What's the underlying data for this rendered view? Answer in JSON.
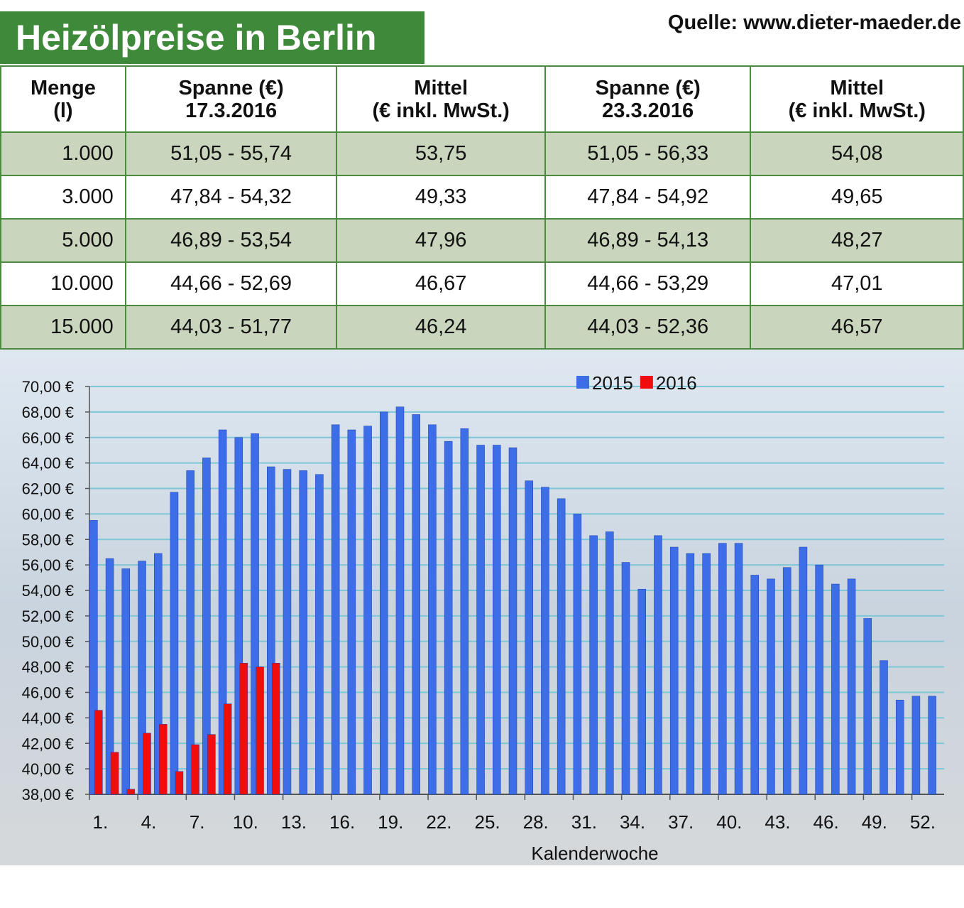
{
  "header": {
    "title": "Heizölpreise in Berlin",
    "source": "Quelle: www.dieter-maeder.de"
  },
  "table": {
    "headers": [
      [
        "Menge",
        "(l)"
      ],
      [
        "Spanne (€)",
        "17.3.2016"
      ],
      [
        "Mittel",
        "(€ inkl. MwSt.)"
      ],
      [
        "Spanne (€)",
        "23.3.2016"
      ],
      [
        "Mittel",
        "(€ inkl. MwSt.)"
      ]
    ],
    "rows": [
      [
        "1.000",
        "51,05 - 55,74",
        "53,75",
        "51,05 - 56,33",
        "54,08"
      ],
      [
        "3.000",
        "47,84 - 54,32",
        "49,33",
        "47,84 - 54,92",
        "49,65"
      ],
      [
        "5.000",
        "46,89 - 53,54",
        "47,96",
        "46,89 - 54,13",
        "48,27"
      ],
      [
        "10.000",
        "44,66 - 52,69",
        "46,67",
        "44,66 - 53,29",
        "47,01"
      ],
      [
        "15.000",
        "44,03 - 51,77",
        "46,24",
        "44,03 - 52,36",
        "46,57"
      ]
    ]
  },
  "chart_data": {
    "type": "bar",
    "x_label": "Kalenderwoche",
    "categories": [
      "1.",
      null,
      null,
      "4.",
      null,
      null,
      "7.",
      null,
      null,
      "10.",
      null,
      null,
      "13.",
      null,
      null,
      "16.",
      null,
      null,
      "19.",
      null,
      null,
      "22.",
      null,
      null,
      "25.",
      null,
      null,
      "28.",
      null,
      null,
      "31.",
      null,
      null,
      "34.",
      null,
      null,
      "37.",
      null,
      null,
      "40.",
      null,
      null,
      "43.",
      null,
      null,
      "46.",
      null,
      null,
      "49.",
      null,
      null,
      "52.",
      null
    ],
    "series": [
      {
        "name": "2015",
        "color": "#3d6ee8",
        "values": [
          59.5,
          56.5,
          55.7,
          56.3,
          56.9,
          61.7,
          63.4,
          64.4,
          66.6,
          66.0,
          66.3,
          63.7,
          63.5,
          63.4,
          63.1,
          67.0,
          66.6,
          66.9,
          68.0,
          68.4,
          67.8,
          67.0,
          65.7,
          66.7,
          65.4,
          65.4,
          65.2,
          62.6,
          62.1,
          61.2,
          60.0,
          58.3,
          58.6,
          56.2,
          54.1,
          58.3,
          57.4,
          56.9,
          56.9,
          57.7,
          57.7,
          55.2,
          54.9,
          55.8,
          57.4,
          56.0,
          54.5,
          54.9,
          51.8,
          48.5,
          45.4,
          45.7,
          45.7
        ]
      },
      {
        "name": "2016",
        "color": "#f20d0d",
        "values": [
          44.6,
          41.3,
          38.4,
          42.8,
          43.5,
          39.8,
          41.9,
          42.7,
          45.1,
          48.3,
          48.0,
          48.3,
          null,
          null,
          null,
          null,
          null,
          null,
          null,
          null,
          null,
          null,
          null,
          null,
          null,
          null,
          null,
          null,
          null,
          null,
          null,
          null,
          null,
          null,
          null,
          null,
          null,
          null,
          null,
          null,
          null,
          null,
          null,
          null,
          null,
          null,
          null,
          null,
          null,
          null,
          null,
          null,
          null
        ]
      }
    ],
    "ylim": [
      38,
      70
    ],
    "yticks": [
      {
        "value": 38,
        "label": "38,00 €"
      },
      {
        "value": 40,
        "label": "40,00 €"
      },
      {
        "value": 42,
        "label": "42,00 €"
      },
      {
        "value": 44,
        "label": "44,00 €"
      },
      {
        "value": 46,
        "label": "46,00 €"
      },
      {
        "value": 48,
        "label": "48,00 €"
      },
      {
        "value": 50,
        "label": "50,00 €"
      },
      {
        "value": 52,
        "label": "52,00 €"
      },
      {
        "value": 54,
        "label": "54,00 €"
      },
      {
        "value": 56,
        "label": "56,00 €"
      },
      {
        "value": 58,
        "label": "58,00 €"
      },
      {
        "value": 60,
        "label": "60,00 €"
      },
      {
        "value": 62,
        "label": "62,00 €"
      },
      {
        "value": 64,
        "label": "64,00 €"
      },
      {
        "value": 66,
        "label": "66,00 €"
      },
      {
        "value": 68,
        "label": "68,00 €"
      },
      {
        "value": 70,
        "label": "70,00 €"
      }
    ],
    "grid": true,
    "legend": "top"
  }
}
